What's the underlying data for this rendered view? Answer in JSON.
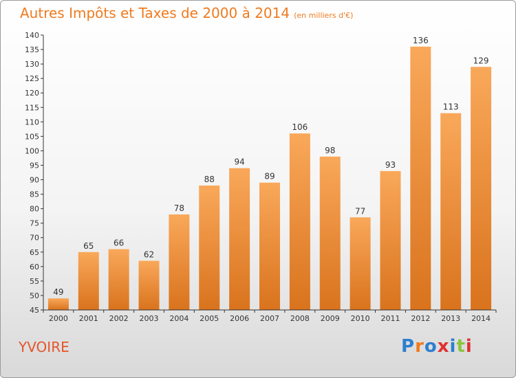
{
  "header": {
    "title": "Autres Impôts et Taxes de 2000 à 2014",
    "subtitle": "(en milliers d'€)"
  },
  "footer": {
    "place": "YVOIRE",
    "logo": "Proxiti",
    "logo_colors": [
      "#2d7fd0",
      "#f07a1e",
      "#2d7fd0",
      "#e03030",
      "#2d7fd0",
      "#8bc53f",
      "#e03030"
    ]
  },
  "chart_data": {
    "type": "bar",
    "title": "Autres Impôts et Taxes de 2000 à 2014",
    "categories": [
      "2000",
      "2001",
      "2002",
      "2003",
      "2004",
      "2005",
      "2006",
      "2007",
      "2008",
      "2009",
      "2010",
      "2011",
      "2012",
      "2013",
      "2014"
    ],
    "values": [
      49,
      65,
      66,
      62,
      78,
      88,
      94,
      89,
      106,
      98,
      77,
      93,
      136,
      113,
      129
    ],
    "ylim": [
      45,
      140
    ],
    "yticks": [
      45,
      50,
      55,
      60,
      65,
      70,
      75,
      80,
      85,
      90,
      95,
      100,
      105,
      110,
      115,
      120,
      125,
      130,
      135,
      140
    ],
    "grid": false,
    "bar_color_top": "#f9a85a",
    "bar_color_bottom": "#d9731d"
  }
}
